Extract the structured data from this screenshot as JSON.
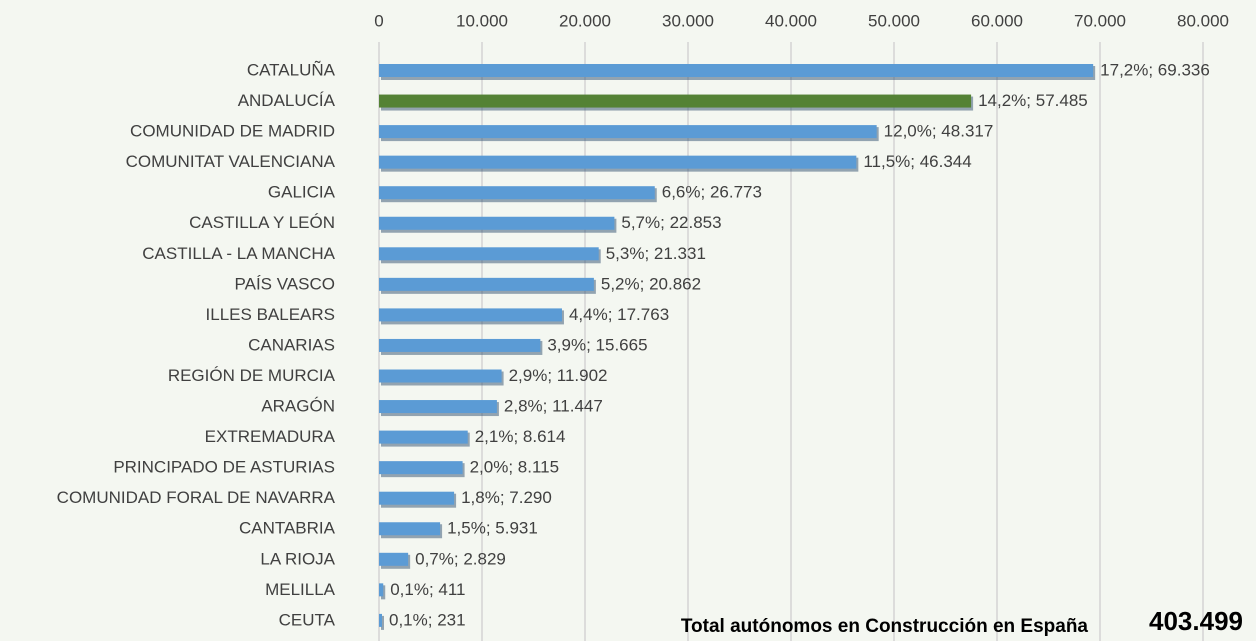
{
  "chart_data": {
    "type": "bar",
    "orientation": "horizontal",
    "categories": [
      "CATALUÑA",
      "ANDALUCÍA",
      "COMUNIDAD DE MADRID",
      "COMUNITAT VALENCIANA",
      "GALICIA",
      "CASTILLA Y LEÓN",
      "CASTILLA - LA MANCHA",
      "PAÍS VASCO",
      "ILLES BALEARS",
      "CANARIAS",
      "REGIÓN DE MURCIA",
      "ARAGÓN",
      "EXTREMADURA",
      "PRINCIPADO DE ASTURIAS",
      "COMUNIDAD FORAL DE NAVARRA",
      "CANTABRIA",
      "LA RIOJA",
      "MELILLA",
      "CEUTA"
    ],
    "values": [
      69336,
      57485,
      48317,
      46344,
      26773,
      22853,
      21331,
      20862,
      17763,
      15665,
      11902,
      11447,
      8614,
      8115,
      7290,
      5931,
      2829,
      411,
      231
    ],
    "value_labels": [
      "17,2%; 69.336",
      "14,2%; 57.485",
      "12,0%; 48.317",
      "11,5%; 46.344",
      "6,6%; 26.773",
      "5,7%; 22.853",
      "5,3%; 21.331",
      "5,2%; 20.862",
      "4,4%; 17.763",
      "3,9%; 15.665",
      "2,9%; 11.902",
      "2,8%; 11.447",
      "2,1%; 8.614",
      "2,0%; 8.115",
      "1,8%; 7.290",
      "1,5%; 5.931",
      "0,7%; 2.829",
      "0,1%; 411",
      "0,1%; 231"
    ],
    "colors": [
      "#5b9bd5",
      "#548235",
      "#5b9bd5",
      "#5b9bd5",
      "#5b9bd5",
      "#5b9bd5",
      "#5b9bd5",
      "#5b9bd5",
      "#5b9bd5",
      "#5b9bd5",
      "#5b9bd5",
      "#5b9bd5",
      "#5b9bd5",
      "#5b9bd5",
      "#5b9bd5",
      "#5b9bd5",
      "#5b9bd5",
      "#5b9bd5",
      "#5b9bd5"
    ],
    "xlim": [
      0,
      80000
    ],
    "xticks": [
      0,
      {
        "value": 10000,
        "label": "10.000"
      },
      {
        "value": 20000,
        "label": "20.000"
      },
      {
        "value": 30000,
        "label": "30.000"
      },
      {
        "value": 40000,
        "label": "40.000"
      },
      {
        "value": 50000,
        "label": "50.000"
      },
      {
        "value": 60000,
        "label": "60.000"
      },
      {
        "value": 70000,
        "label": "70.000"
      },
      {
        "value": 80000,
        "label": "80.000"
      }
    ],
    "grid": true,
    "annotations": [
      "Total autónomos en Construcción en España",
      "403.499"
    ]
  }
}
